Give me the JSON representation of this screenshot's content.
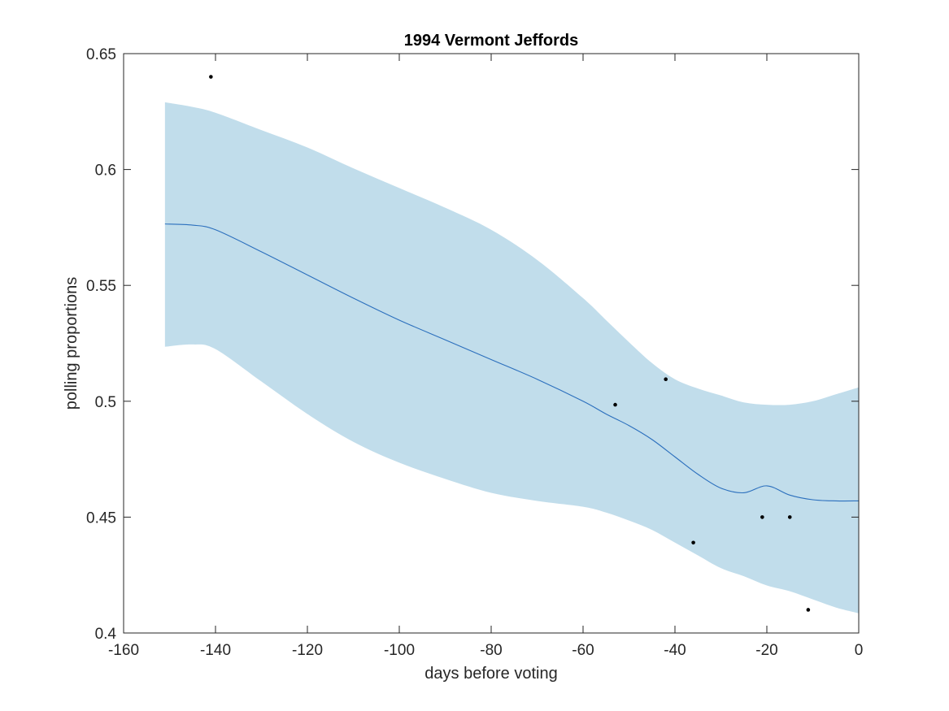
{
  "chart_data": {
    "type": "line",
    "title": "1994 Vermont Jeffords",
    "xlabel": "days before voting",
    "ylabel": "polling proportions",
    "xlim": [
      -160,
      0
    ],
    "ylim": [
      0.4,
      0.65
    ],
    "xticks": [
      -160,
      -140,
      -120,
      -100,
      -80,
      -60,
      -40,
      -20,
      0
    ],
    "xtick_labels": [
      "-160",
      "-140",
      "-120",
      "-100",
      "-80",
      "-60",
      "-40",
      "-20",
      "0"
    ],
    "yticks": [
      0.4,
      0.45,
      0.5,
      0.55,
      0.6,
      0.65
    ],
    "ytick_labels": [
      "0.4",
      "0.45",
      "0.5",
      "0.55",
      "0.6",
      "0.65"
    ],
    "grid": false,
    "colors": {
      "mean_line": "#2b6fbd",
      "band": "#c1ddeb",
      "points": "#000000",
      "axes": "#262626"
    },
    "mean_curve": {
      "x": [
        -151,
        -145,
        -140,
        -130,
        -120,
        -110,
        -100,
        -90,
        -80,
        -70,
        -60,
        -55,
        -50,
        -45,
        -40,
        -35,
        -30,
        -25,
        -20,
        -15,
        -10,
        -5,
        0
      ],
      "y": [
        0.5765,
        0.576,
        0.574,
        0.5645,
        0.5545,
        0.5445,
        0.535,
        0.5265,
        0.518,
        0.5095,
        0.5,
        0.4945,
        0.4895,
        0.4835,
        0.476,
        0.4685,
        0.4625,
        0.4605,
        0.4635,
        0.4595,
        0.4575,
        0.457,
        0.457
      ]
    },
    "confidence_band": {
      "x": [
        -151,
        -145,
        -140,
        -130,
        -120,
        -110,
        -100,
        -90,
        -80,
        -70,
        -60,
        -55,
        -50,
        -45,
        -40,
        -35,
        -30,
        -25,
        -20,
        -15,
        -10,
        -5,
        0
      ],
      "upper": [
        0.629,
        0.627,
        0.6245,
        0.617,
        0.6095,
        0.6005,
        0.592,
        0.5835,
        0.574,
        0.561,
        0.5445,
        0.535,
        0.5255,
        0.5165,
        0.5095,
        0.5055,
        0.5025,
        0.4995,
        0.4985,
        0.4985,
        0.5,
        0.503,
        0.506
      ],
      "lower": [
        0.5235,
        0.5245,
        0.5225,
        0.5085,
        0.4945,
        0.4825,
        0.4735,
        0.4665,
        0.4605,
        0.457,
        0.4545,
        0.452,
        0.4485,
        0.4445,
        0.439,
        0.4335,
        0.428,
        0.4245,
        0.4205,
        0.418,
        0.4145,
        0.411,
        0.4085
      ]
    },
    "points": {
      "x": [
        -141,
        -53,
        -42,
        -36,
        -21,
        -15,
        -11
      ],
      "y": [
        0.64,
        0.4985,
        0.5095,
        0.439,
        0.45,
        0.45,
        0.41
      ]
    }
  }
}
